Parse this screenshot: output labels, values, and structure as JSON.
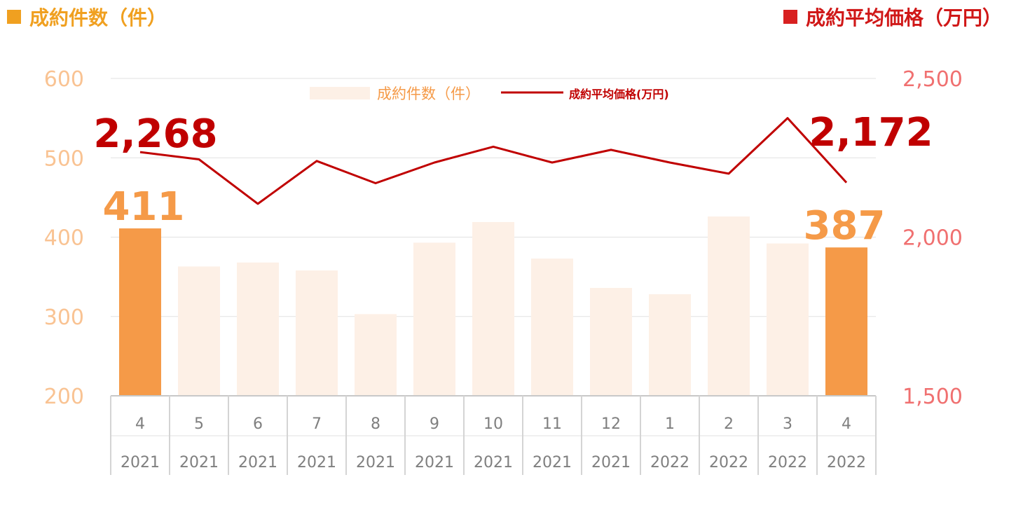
{
  "headers": {
    "left": "成約件数（件）",
    "right": "成約平均価格（万円）"
  },
  "colors": {
    "header_left": "#f0a020",
    "header_right": "#d82020",
    "bar_highlight": "#f59a48",
    "bar_muted": "#fdf0e6",
    "line": "#c00000",
    "left_axis_text": "#f9c393",
    "right_axis_text": "#f07070",
    "label_count": "#f59a48",
    "label_price": "#c00000"
  },
  "legend": {
    "bars": "成約件数（件）",
    "line": "成約平均価格(万円)",
    "placement": "top-center"
  },
  "chart_data": {
    "type": "bar",
    "combo": "bar+line",
    "categories": [
      {
        "month": "4",
        "year": "2021"
      },
      {
        "month": "5",
        "year": "2021"
      },
      {
        "month": "6",
        "year": "2021"
      },
      {
        "month": "7",
        "year": "2021"
      },
      {
        "month": "8",
        "year": "2021"
      },
      {
        "month": "9",
        "year": "2021"
      },
      {
        "month": "10",
        "year": "2021"
      },
      {
        "month": "11",
        "year": "2021"
      },
      {
        "month": "12",
        "year": "2021"
      },
      {
        "month": "1",
        "year": "2022"
      },
      {
        "month": "2",
        "year": "2022"
      },
      {
        "month": "3",
        "year": "2022"
      },
      {
        "month": "4",
        "year": "2022"
      }
    ],
    "series": [
      {
        "name": "成約件数（件）",
        "axis": "left",
        "kind": "bar",
        "values": [
          411,
          363,
          368,
          358,
          303,
          393,
          419,
          373,
          336,
          328,
          426,
          392,
          387
        ],
        "highlight": [
          true,
          false,
          false,
          false,
          false,
          false,
          false,
          false,
          false,
          false,
          false,
          false,
          true
        ]
      },
      {
        "name": "成約平均価格(万円)",
        "axis": "right",
        "kind": "line",
        "values": [
          2268,
          2245,
          2105,
          2240,
          2170,
          2235,
          2285,
          2235,
          2275,
          2235,
          2200,
          2375,
          2172
        ]
      }
    ],
    "left_axis": {
      "ylim": [
        200,
        600
      ],
      "ticks": [
        "600",
        "500",
        "400",
        "300",
        "200"
      ]
    },
    "right_axis": {
      "ylim": [
        1500,
        2500
      ],
      "ticks": [
        "2,500",
        "2,000",
        "1,500"
      ]
    },
    "grid": true,
    "data_labels": {
      "bar_first": "411",
      "bar_last": "387",
      "line_first": "2,268",
      "line_last": "2,172"
    }
  }
}
